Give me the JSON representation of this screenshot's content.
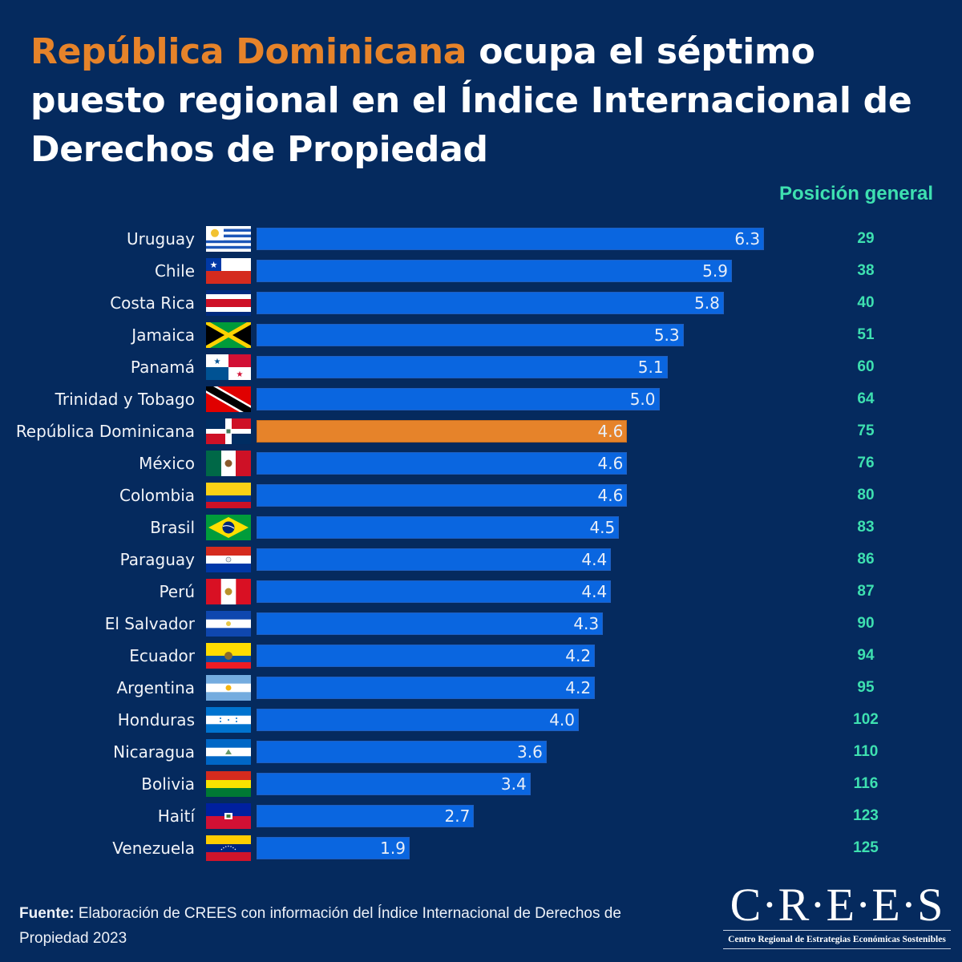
{
  "title": {
    "highlight": "República Dominicana",
    "rest": " ocupa el séptimo puesto regional en el Índice Internacional de Derechos de Propiedad"
  },
  "colors": {
    "background": "#052a5e",
    "bar": "#0a66e0",
    "highlight_bar": "#e6832a",
    "rank_text": "#3ee0b0"
  },
  "rank_header": "Posición general",
  "chart_data": {
    "type": "bar",
    "orientation": "horizontal",
    "title": "República Dominicana ocupa el séptimo puesto regional en el Índice Internacional de Derechos de Propiedad",
    "xlabel": "",
    "ylabel": "",
    "xlim": [
      0,
      6.3
    ],
    "grid": false,
    "highlight": "República Dominicana",
    "categories": [
      "Uruguay",
      "Chile",
      "Costa Rica",
      "Jamaica",
      "Panamá",
      "Trinidad y Tobago",
      "República Dominicana",
      "México",
      "Colombia",
      "Brasil",
      "Paraguay",
      "Perú",
      "El Salvador",
      "Ecuador",
      "Argentina",
      "Honduras",
      "Nicaragua",
      "Bolivia",
      "Haití",
      "Venezuela"
    ],
    "values": [
      6.3,
      5.9,
      5.8,
      5.3,
      5.1,
      5.0,
      4.6,
      4.6,
      4.6,
      4.5,
      4.4,
      4.4,
      4.3,
      4.2,
      4.2,
      4.0,
      3.6,
      3.4,
      2.7,
      1.9
    ],
    "value_labels": [
      "6.3",
      "5.9",
      "5.8",
      "5.3",
      "5.1",
      "5.0",
      "4.6",
      "4.6",
      "4.6",
      "4.5",
      "4.4",
      "4.4",
      "4.3",
      "4.2",
      "4.2",
      "4.0",
      "3.6",
      "3.4",
      "2.7",
      "1.9"
    ],
    "rank_header": "Posición general",
    "ranks": [
      29,
      38,
      40,
      51,
      60,
      64,
      75,
      76,
      80,
      83,
      86,
      87,
      90,
      94,
      95,
      102,
      110,
      116,
      123,
      125
    ],
    "flags": [
      "uruguay-flag",
      "chile-flag",
      "costa-rica-flag",
      "jamaica-flag",
      "panama-flag",
      "trinidad-tobago-flag",
      "dominican-republic-flag",
      "mexico-flag",
      "colombia-flag",
      "brazil-flag",
      "paraguay-flag",
      "peru-flag",
      "el-salvador-flag",
      "ecuador-flag",
      "argentina-flag",
      "honduras-flag",
      "nicaragua-flag",
      "bolivia-flag",
      "haiti-flag",
      "venezuela-flag"
    ]
  },
  "footer": {
    "source_label": "Fuente:",
    "source_text": " Elaboración de CREES con información del Índice Internacional de Derechos de Propiedad 2023"
  },
  "logo": {
    "main": "C·R·E·E·S",
    "subtitle": "Centro Regional de Estrategias Económicas Sostenibles"
  }
}
